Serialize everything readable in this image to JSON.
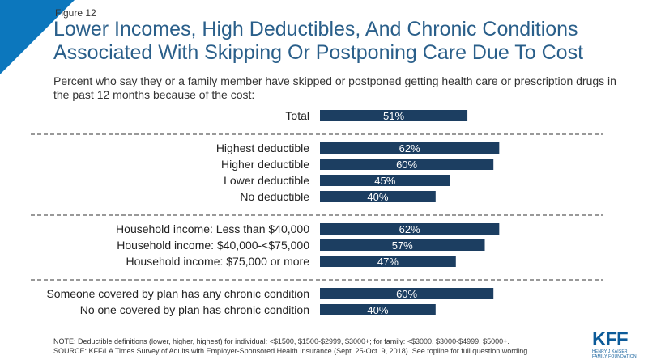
{
  "figure_label": "Figure 12",
  "title": "Lower Incomes, High Deductibles, And Chronic Conditions Associated With Skipping Or Postponing Care Due To Cost",
  "subtitle": "Percent who say they or a family member have skipped or postponed getting health care or prescription drugs in the past 12 months because of the cost:",
  "note": "NOTE: Deductible definitions (lower, higher, highest) for individual: <$1500, $1500-$2999, $3000+; for family: <$3000, $3000-$4999, $5000+.",
  "source": "SOURCE: KFF/LA Times Survey of Adults with Employer-Sponsored Health Insurance (Sept. 25-Oct. 9, 2018). See topline for full question wording.",
  "logo": {
    "text": "KFF",
    "line1": "HENRY J KAISER",
    "line2": "FAMILY FOUNDATION"
  },
  "colors": {
    "bar": "#1c3e61",
    "bar_text": "#ffffff",
    "accent": "#0c77bd"
  },
  "chart_data": {
    "type": "bar",
    "orientation": "horizontal",
    "unit": "%",
    "groups": [
      {
        "categories": [
          "Total"
        ],
        "values": [
          51
        ]
      },
      {
        "categories": [
          "Highest deductible",
          "Higher deductible",
          "Lower deductible",
          "No deductible"
        ],
        "values": [
          62,
          60,
          45,
          40
        ]
      },
      {
        "categories": [
          "Household income: Less than $40,000",
          "Household income: $40,000-<$75,000",
          "Household income: $75,000 or more"
        ],
        "values": [
          62,
          57,
          47
        ]
      },
      {
        "categories": [
          "Someone covered by plan has any chronic condition",
          "No one covered by plan has chronic condition"
        ],
        "values": [
          60,
          40
        ]
      }
    ],
    "value_labels": true,
    "grid": false,
    "group_separators": "dashed"
  }
}
